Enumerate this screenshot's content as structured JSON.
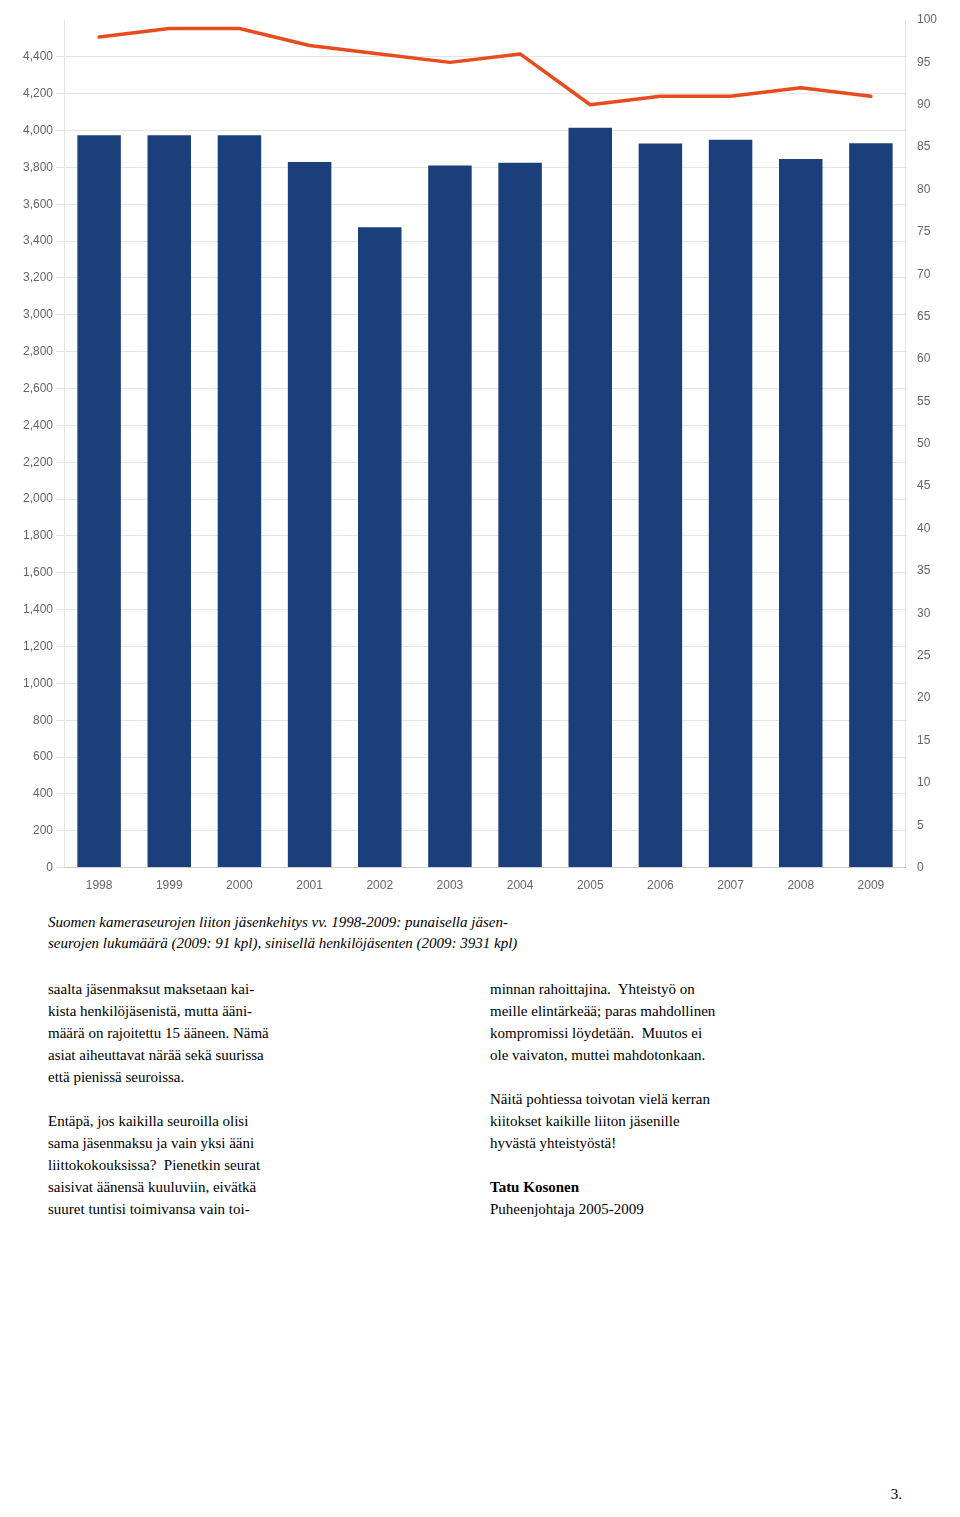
{
  "chart_data": {
    "type": "bar",
    "categories": [
      1998,
      1999,
      2000,
      2001,
      2002,
      2003,
      2004,
      2005,
      2006,
      2007,
      2008,
      2009
    ],
    "series": [
      {
        "type": "bar",
        "color": "#1a3f7a",
        "values": [
          3975,
          3975,
          3975,
          3830,
          3475,
          3810,
          3825,
          4015,
          3930,
          3950,
          3845,
          3931
        ]
      },
      {
        "type": "line",
        "color": "#e84c1e",
        "axis": "y2",
        "marker": "none",
        "values": [
          98,
          99,
          99,
          97,
          96,
          95,
          96,
          90,
          91,
          91,
          92,
          91
        ]
      }
    ],
    "ylim": [
      0,
      4600
    ],
    "yticks": [
      0,
      200,
      400,
      600,
      800,
      1000,
      1200,
      1400,
      1600,
      1800,
      2000,
      2200,
      2400,
      2600,
      2800,
      3000,
      3200,
      3400,
      3600,
      3800,
      4000,
      4200,
      4400
    ],
    "y2lim": [
      0,
      100
    ],
    "y2ticks": [
      0,
      5,
      10,
      15,
      20,
      25,
      30,
      35,
      40,
      45,
      50,
      55,
      60,
      65,
      70,
      75,
      80,
      85,
      90,
      95,
      100
    ],
    "grid": true,
    "annotations": [
      "Suomen kameraseurojen liiton jäsenkehitys vv. 1998-2009: punaisella jäsen-",
      "seurojen lukumäärä (2009: 91 kpl), sinisellä henkilöjäsenten (2009: 3931 kpl)",
      "saalta jäsenmaksut maksetaan kai-\nkista henkilöjäsenistä, mutta ääni-\nmäärä on rajoitettu 15 ääneen. Nämä\nasiat aiheuttavat närää sekä suurissa\nettä pienissä seuroissa.\n\nEntäpä, jos kaikilla seuroilla olisi\nsama jäsenmaksu ja vain yksi ääni\nliittokokouksissa?  Pienetkin seurat\nsaisivat äänensä kuuluviin, eivätkä\nsuuret tuntisi toimivansa vain toi-",
      "minnan rahoittajina.  Yhteistyö on\nmeille elintärkeää; paras mahdollinen\nkompromissi löydetään.  Muutos ei\nole vaivaton, muttei mahdotonkaan.\n\nNäitä pohtiessa toivotan vielä kerran\nkiitokset kaikille liiton jäsenille\nhyvästä yhteistyöstä!",
      "Tatu Kosonen",
      "Puheenjohtaja 2005-2009",
      "3."
    ]
  }
}
